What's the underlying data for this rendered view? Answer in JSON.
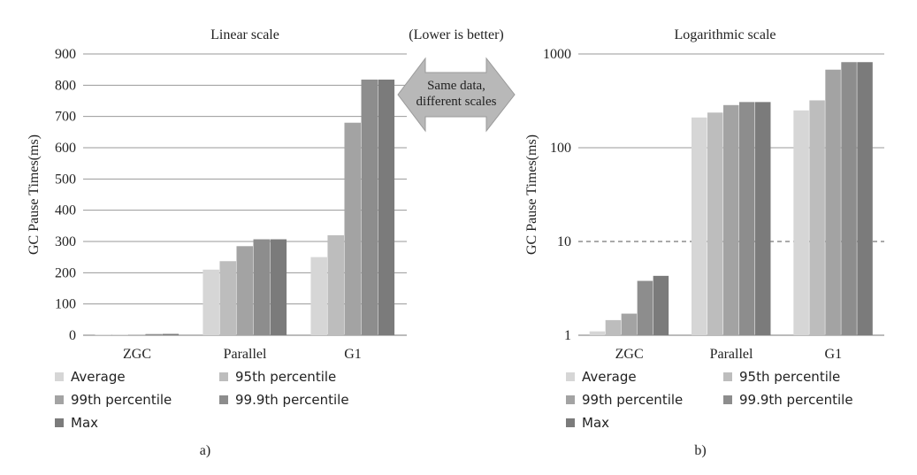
{
  "center_note": {
    "caption": "(Lower is better)",
    "arrow_line1": "Same data,",
    "arrow_line2": "different scales"
  },
  "series_colors": [
    "#d6d6d6",
    "#bdbdbd",
    "#a3a3a3",
    "#8d8d8d",
    "#7b7b7b"
  ],
  "chart_data": [
    {
      "type": "bar",
      "title": "Linear scale",
      "ylabel": "GC Pause Times(ms)",
      "panel_label": "a)",
      "scale": "linear",
      "ylim": [
        0,
        900
      ],
      "yticks": [
        0,
        100,
        200,
        300,
        400,
        500,
        600,
        700,
        800,
        900
      ],
      "ytick_labels": [
        "0",
        "100",
        "200",
        "300",
        "400",
        "500",
        "600",
        "700",
        "800",
        "900"
      ],
      "grid": true,
      "categories": [
        "ZGC",
        "Parallel",
        "G1"
      ],
      "series": [
        {
          "name": "Average",
          "values": [
            1.1,
            210,
            250
          ]
        },
        {
          "name": "95th percentile",
          "values": [
            1.45,
            237,
            320
          ]
        },
        {
          "name": "99th percentile",
          "values": [
            1.7,
            285,
            680
          ]
        },
        {
          "name": "99.9th percentile",
          "values": [
            3.8,
            307,
            818
          ]
        },
        {
          "name": "Max",
          "values": [
            4.3,
            307,
            818
          ]
        }
      ]
    },
    {
      "type": "bar",
      "title": "Logarithmic scale",
      "ylabel": "GC Pause Times(ms)",
      "panel_label": "b)",
      "scale": "log",
      "ylim": [
        1,
        1000
      ],
      "yticks": [
        1,
        10,
        100,
        1000
      ],
      "ytick_labels": [
        "1",
        "10",
        "100",
        "1000"
      ],
      "grid": true,
      "reference_line": 10,
      "categories": [
        "ZGC",
        "Parallel",
        "G1"
      ],
      "series": [
        {
          "name": "Average",
          "values": [
            1.1,
            210,
            250
          ]
        },
        {
          "name": "95th percentile",
          "values": [
            1.45,
            237,
            320
          ]
        },
        {
          "name": "99th percentile",
          "values": [
            1.7,
            285,
            680
          ]
        },
        {
          "name": "99.9th percentile",
          "values": [
            3.8,
            307,
            818
          ]
        },
        {
          "name": "Max",
          "values": [
            4.3,
            307,
            818
          ]
        }
      ]
    }
  ]
}
